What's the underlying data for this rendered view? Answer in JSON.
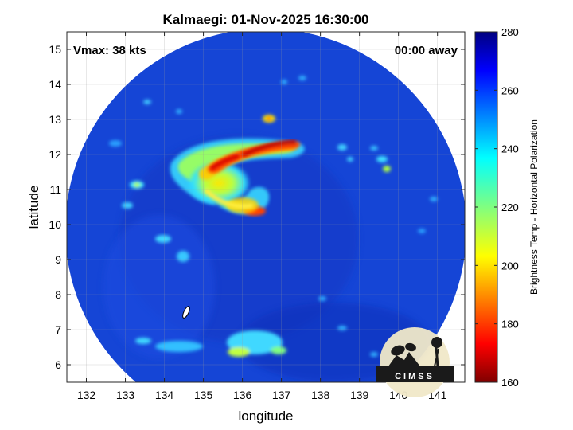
{
  "title": "Kalmaegi: 01-Nov-2025 16:30:00",
  "vmax_label": "Vmax: 38 kts",
  "time_away_label": "00:00 away",
  "map": {
    "x_axis_label": "longitude",
    "y_axis_label": "latitude",
    "lon_range": [
      131.5,
      141.7
    ],
    "lat_range": [
      5.5,
      15.5
    ],
    "lon_ticks": [
      132,
      133,
      134,
      135,
      136,
      137,
      138,
      139,
      140,
      141
    ],
    "lat_ticks": [
      6,
      7,
      8,
      9,
      10,
      11,
      12,
      13,
      14,
      15
    ],
    "grid": true,
    "swath_center": [
      136.7,
      10.1
    ],
    "swath_background_color": "#1440d8",
    "storm_center_approx": [
      136.3,
      10.9
    ]
  },
  "colorbar": {
    "label": "Brightness Temp - Horizontal Polarization",
    "min": 160,
    "max": 280,
    "ticks": [
      160,
      180,
      200,
      220,
      240,
      260,
      280
    ],
    "colormap": "jet"
  },
  "logo": {
    "text": "CIMSS"
  }
}
